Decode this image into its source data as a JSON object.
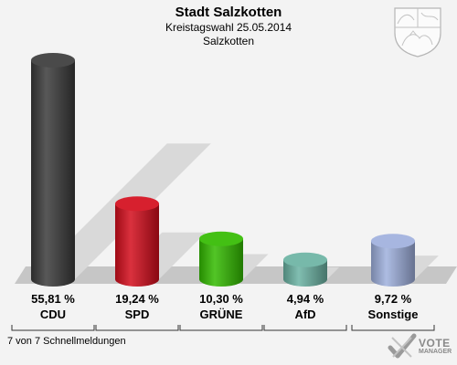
{
  "header": {
    "title": "Stadt Salzkotten",
    "subtitle": "Kreistagswahl 25.05.2014",
    "location": "Salzkotten"
  },
  "footer": {
    "status": "7 von 7 Schnellmeldungen",
    "brand_line1": "VOTE",
    "brand_line2": "MANAGER"
  },
  "icons": {
    "emblem": "coat-of-arms-icon",
    "logo": "vote-manager-logo"
  },
  "colors": {
    "background": "#f3f3f3",
    "floor": "#c6c6c6",
    "shadow": "#d9d9d9",
    "CDU": "#3a3a3a",
    "SPD": "#d30d1c",
    "GRÜNE": "#33bb00",
    "AfD": "#6bb3a3",
    "Sonstige": "#9fb0dd"
  },
  "chart_data": {
    "type": "bar",
    "title": "Stadt Salzkotten",
    "subtitle": "Kreistagswahl 25.05.2014",
    "categories": [
      "CDU",
      "SPD",
      "GRÜNE",
      "AfD",
      "Sonstige"
    ],
    "values": [
      55.81,
      19.24,
      10.3,
      4.94,
      9.72
    ],
    "value_labels": [
      "55,81 %",
      "19,24 %",
      "10,30 %",
      "4,94 %",
      "9,72 %"
    ],
    "ylim": [
      0,
      60
    ],
    "grid": false,
    "legend": "none"
  }
}
